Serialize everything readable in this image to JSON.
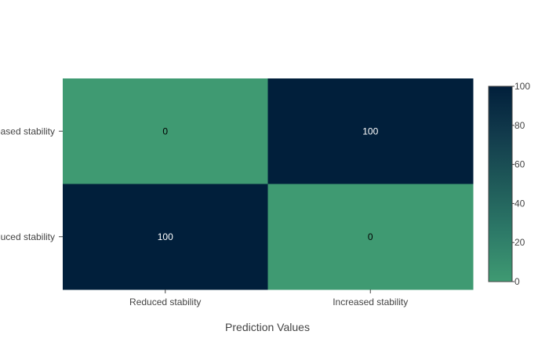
{
  "chart_data": {
    "type": "heatmap",
    "title": "",
    "xlabel": "Prediction Values",
    "ylabel": "",
    "x_categories": [
      "Reduced stability",
      "Increased stability"
    ],
    "y_categories": [
      "Increased stability",
      "Reduced stability"
    ],
    "z": [
      [
        0,
        100
      ],
      [
        100,
        0
      ]
    ],
    "zlim": [
      0,
      100
    ],
    "colorbar": {
      "ticks": [
        0,
        20,
        40,
        60,
        80,
        100
      ],
      "tick_labels": [
        "0",
        "20",
        "40",
        "60",
        "80",
        "100"
      ],
      "low_color": "#3f9a72",
      "high_color": "#011f3b"
    },
    "grid": false,
    "legend": "none"
  }
}
